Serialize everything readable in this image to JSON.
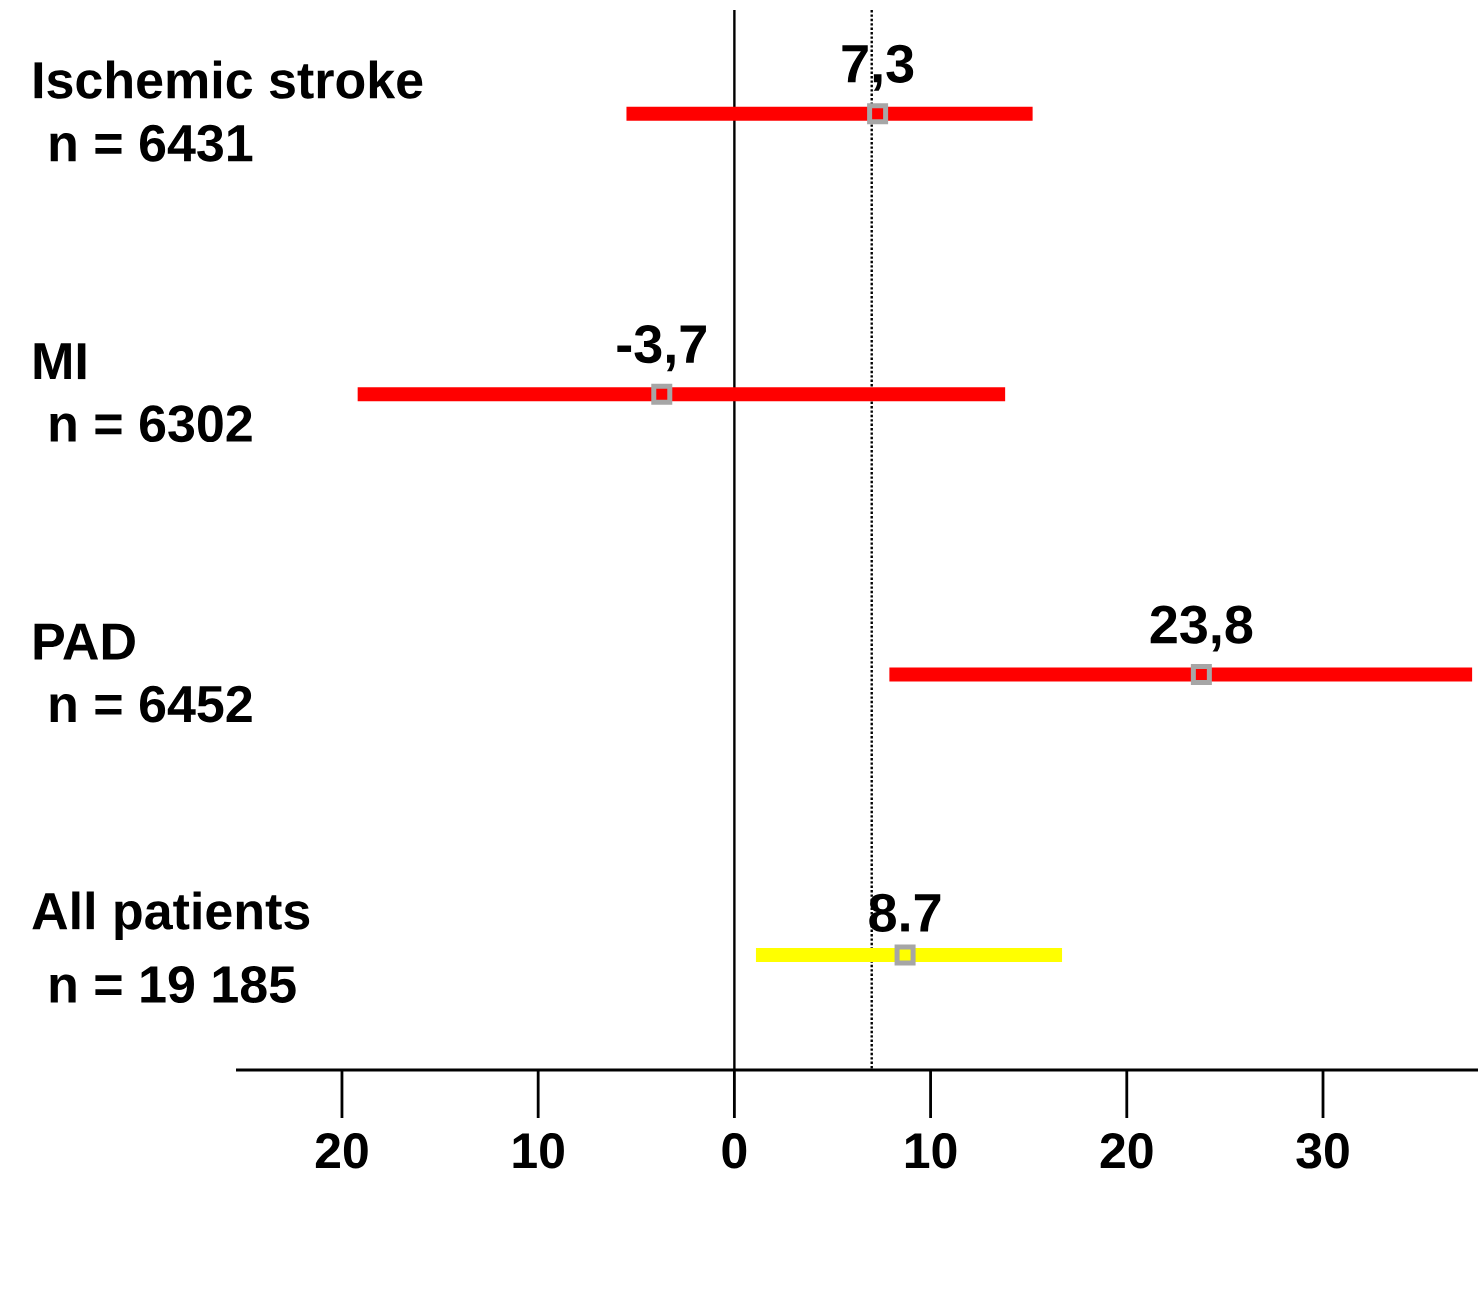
{
  "chart_data": {
    "type": "scatter",
    "orientation": "horizontal",
    "categories": [
      "Ischemic stroke",
      "MI",
      "PAD",
      "All patients"
    ],
    "values": [
      7.3,
      -3.7,
      23.8,
      8.7
    ],
    "errors": [
      [
        -5.5,
        15.2
      ],
      [
        -19.2,
        13.8
      ],
      [
        7.9,
        37.6
      ],
      [
        1.1,
        16.7
      ]
    ],
    "colors": [
      "#ff0000",
      "#ff0000",
      "#ff0000",
      "#ffff00"
    ],
    "value_labels": [
      "7,3",
      "-3,7",
      "23,8",
      "8.7"
    ],
    "annotations": [
      "n = 6431",
      "n = 6302",
      "n = 6452",
      "n = 19 185"
    ],
    "xlim": [
      -25.4,
      37.9
    ],
    "xticks": [
      {
        "value": -20,
        "label": "20"
      },
      {
        "value": -10,
        "label": "10"
      },
      0,
      10,
      20,
      30
    ],
    "ref_lines": [
      {
        "axis": "x",
        "value": 0,
        "line_style": "solid"
      },
      {
        "axis": "x",
        "value": 7.0,
        "line_style": "dotted"
      }
    ],
    "marker": "square",
    "grid": false
  }
}
